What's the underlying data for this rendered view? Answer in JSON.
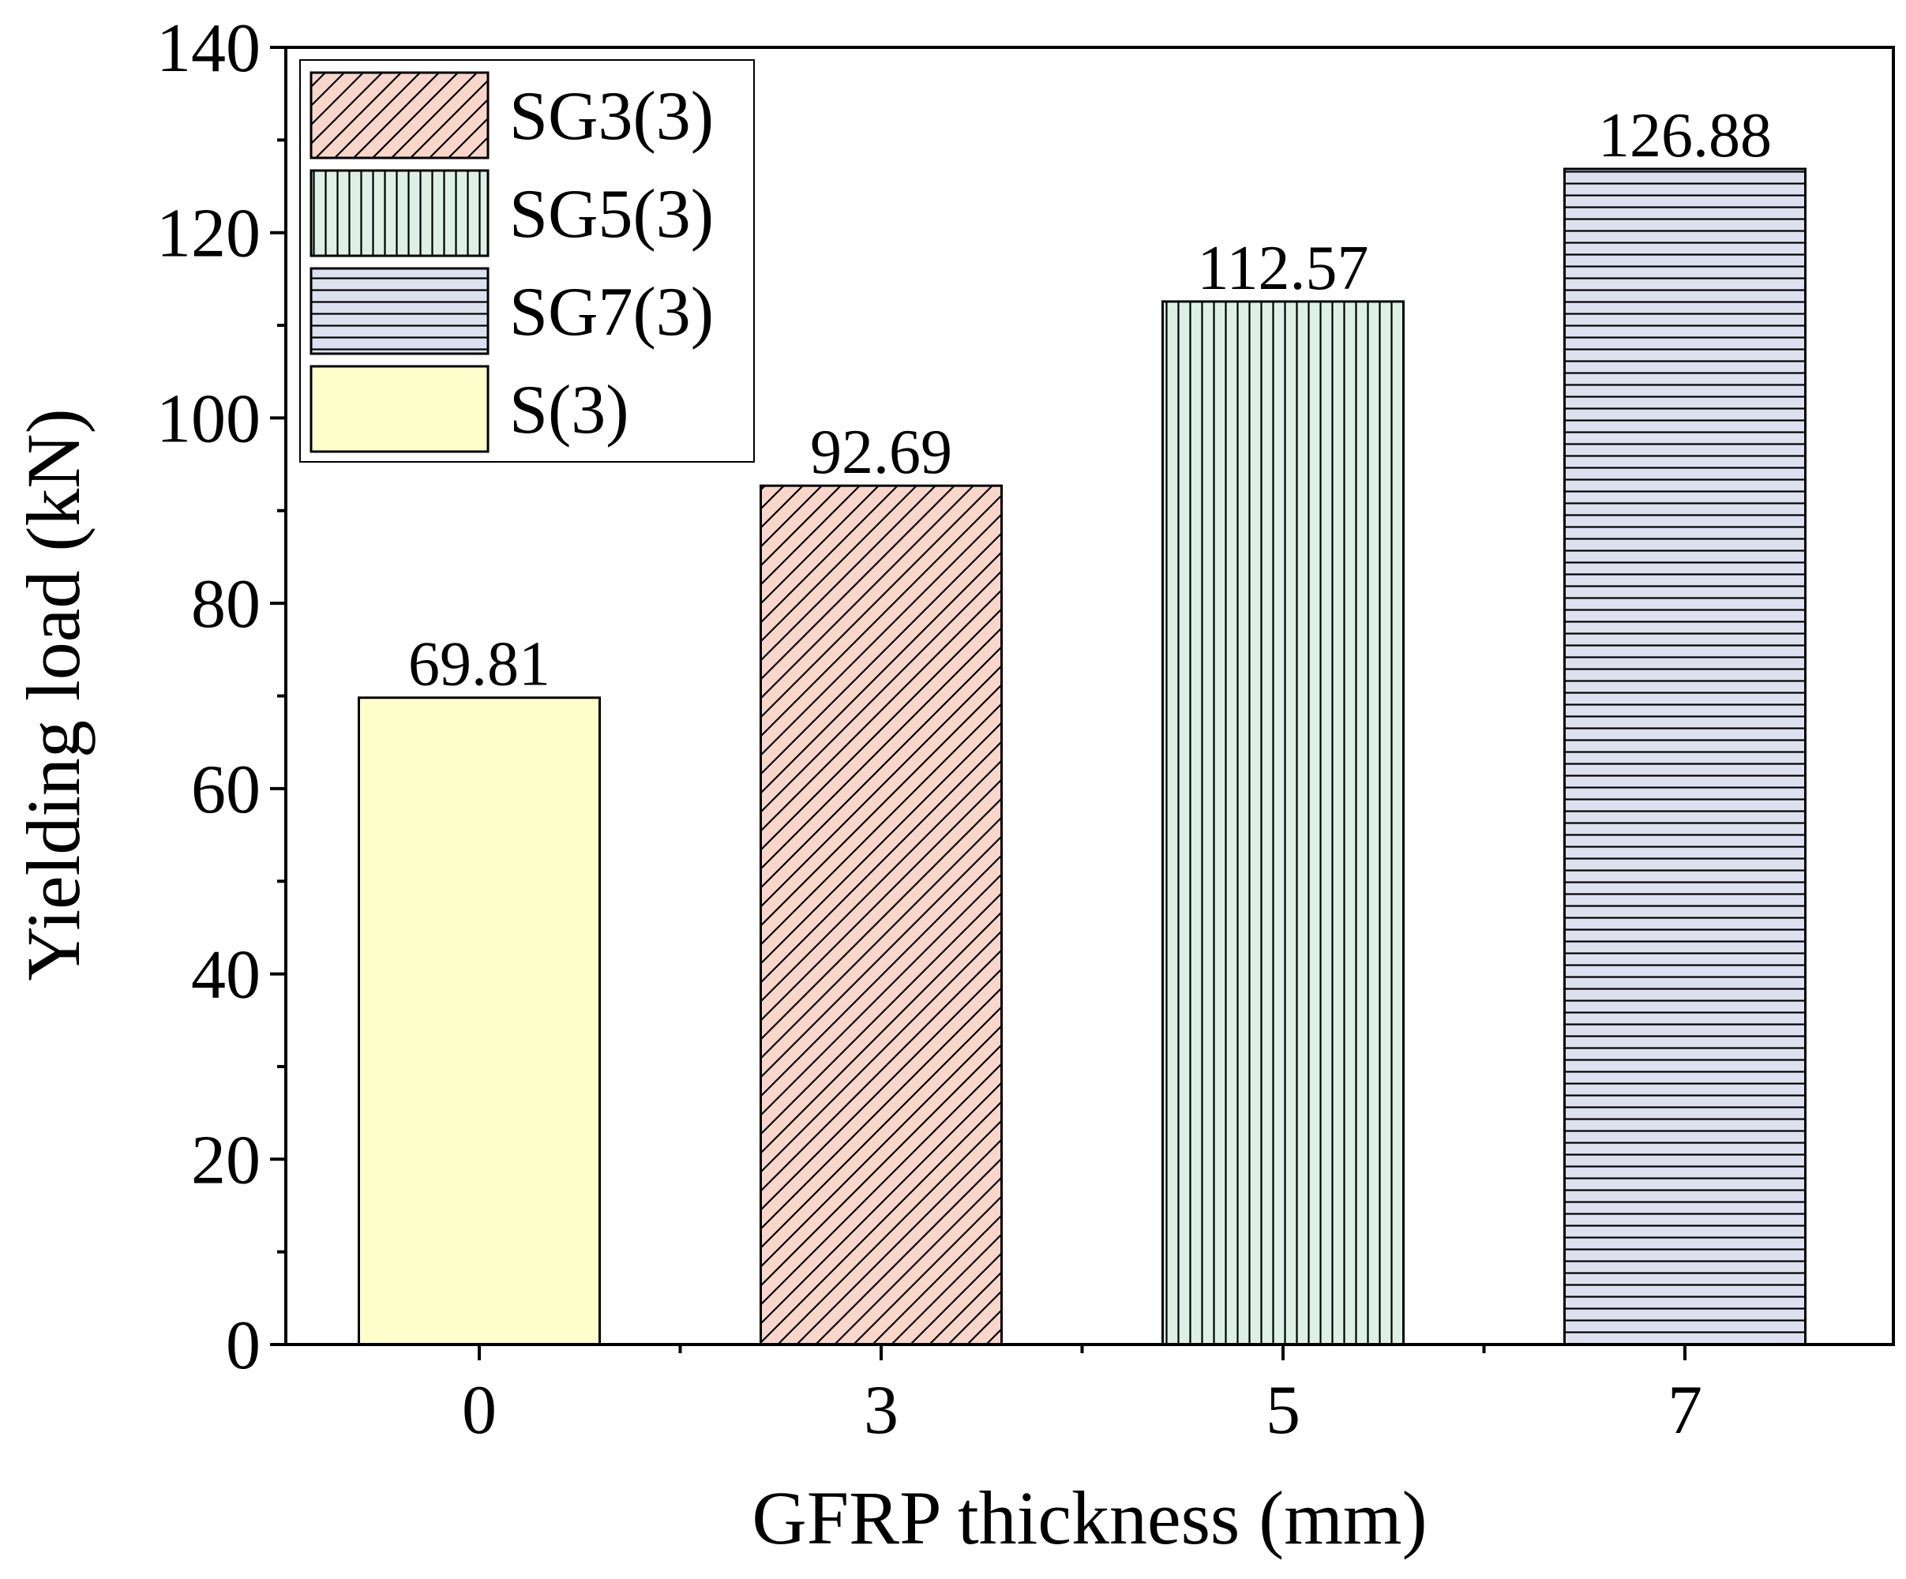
{
  "chart_data": {
    "type": "bar",
    "title": "",
    "xlabel": "GFRP thickness (mm)",
    "ylabel": "Yielding load (kN)",
    "categories": [
      "0",
      "3",
      "5",
      "7"
    ],
    "values": [
      69.81,
      92.69,
      112.57,
      126.88
    ],
    "value_labels": [
      "69.81",
      "92.69",
      "112.57",
      "126.88"
    ],
    "series_names": [
      "S(3)",
      "SG3(3)",
      "SG5(3)",
      "SG7(3)"
    ],
    "fill_colors": [
      "#FFFFCC",
      "#F9D6CA",
      "#DDF0E5",
      "#DDE1EF"
    ],
    "patterns": [
      "none",
      "diagonal",
      "vertical",
      "horizontal"
    ],
    "ylim": [
      0,
      140
    ],
    "yticks": [
      0,
      20,
      40,
      60,
      80,
      100,
      120,
      140
    ],
    "ytick_labels": [
      "0",
      "20",
      "40",
      "60",
      "80",
      "100",
      "120",
      "140"
    ],
    "grid": false,
    "legend": {
      "placement": "top-left",
      "entries": [
        {
          "label": "SG3(3)",
          "color": "#F9D6CA",
          "pattern": "diagonal"
        },
        {
          "label": "SG5(3)",
          "color": "#DDF0E5",
          "pattern": "vertical"
        },
        {
          "label": "SG7(3)",
          "color": "#DDE1EF",
          "pattern": "horizontal"
        },
        {
          "label": "S(3)",
          "color": "#FFFFCC",
          "pattern": "none"
        }
      ]
    }
  }
}
